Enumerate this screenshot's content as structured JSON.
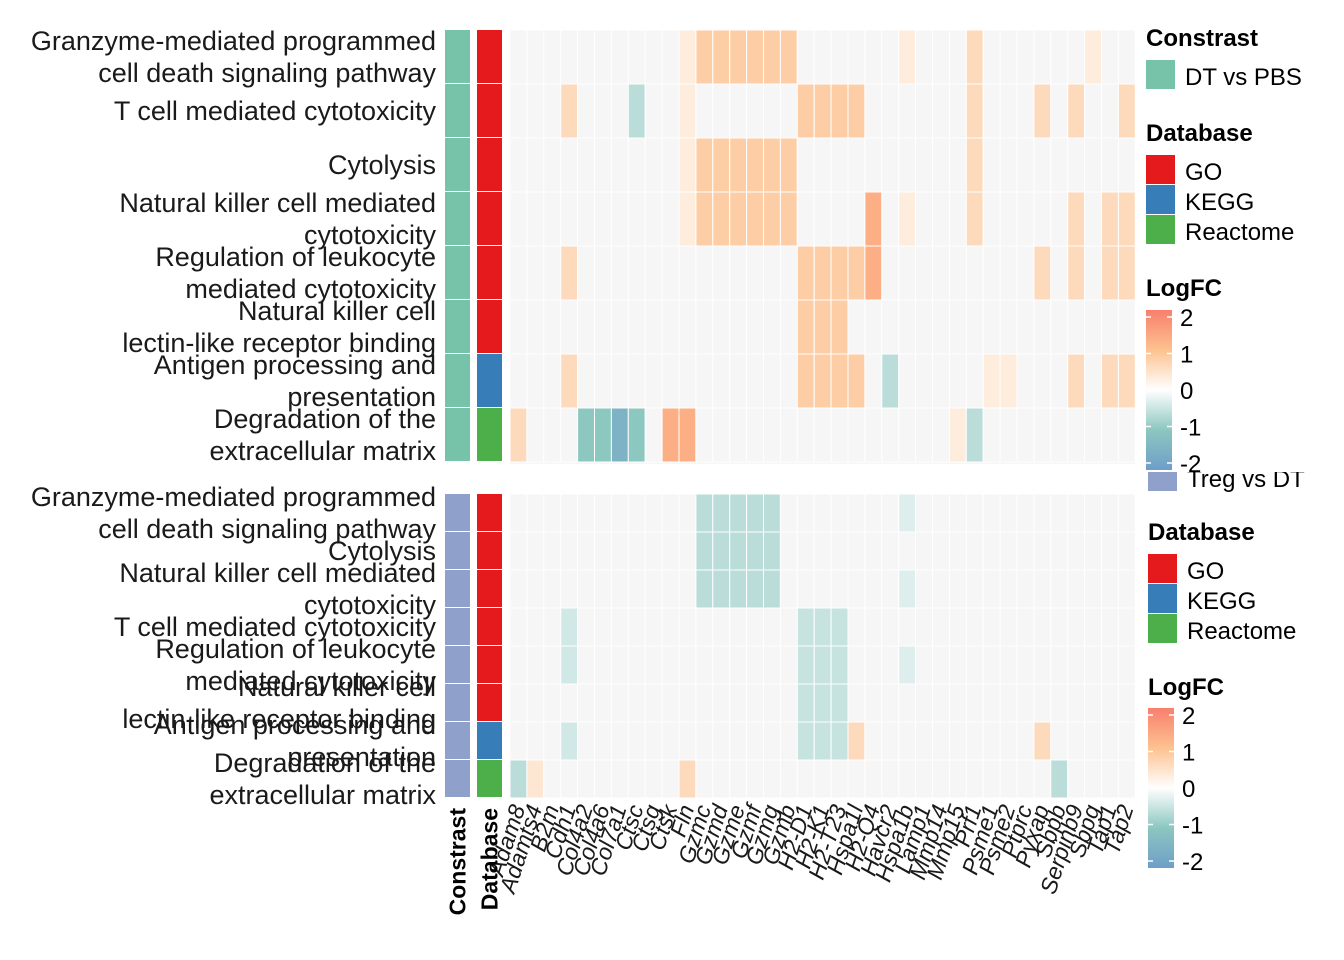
{
  "chart_data": {
    "type": "heatmap",
    "genes": [
      "Adam8",
      "Adamts4",
      "B2m",
      "Cdh1",
      "Col4a2",
      "Col4a6",
      "Col7a1",
      "Ctsc",
      "Ctsg",
      "Ctsk",
      "Fln",
      "Gzmc",
      "Gzmd",
      "Gzme",
      "Gzmf",
      "Gzmg",
      "Gzmb",
      "H2-D1",
      "H2-K1",
      "H2-T23",
      "Hspa1l",
      "H2-Q4",
      "Havcr2",
      "Hspa1b",
      "Lamp1",
      "Mmp14",
      "Mmp15",
      "Prf1",
      "Psme1",
      "Psme2",
      "Ptprc",
      "Pyxap",
      "Sbpb",
      "Serpinb9",
      "Sbpg",
      "Tap1",
      "Tap2"
    ],
    "x_axis_titles": [
      "Constrast",
      "Database"
    ],
    "logfc_scale": {
      "min": -2,
      "max": 2,
      "ticks": [
        "2",
        "1",
        "0",
        "-1",
        "-2"
      ]
    },
    "panels": [
      {
        "constrast": "DT vs PBS",
        "rows": [
          {
            "label": [
              "Granzyme-mediated programmed",
              "cell death signaling pathway"
            ],
            "database": "GO",
            "values": [
              0,
              0,
              0,
              0,
              0,
              0,
              0,
              0,
              0,
              0,
              0.3,
              0.8,
              0.8,
              0.8,
              0.8,
              0.8,
              0.8,
              0,
              0,
              0,
              0,
              0,
              0,
              0.3,
              0,
              0,
              0,
              0.6,
              0,
              0,
              0,
              0,
              0,
              0,
              0.3,
              0,
              0
            ]
          },
          {
            "label": [
              "T cell mediated cytotoxicity"
            ],
            "database": "GO",
            "values": [
              0,
              0,
              0,
              0.6,
              0,
              0,
              0,
              -0.6,
              0,
              0,
              0.3,
              0,
              0,
              0,
              0,
              0,
              0,
              0.8,
              0.8,
              0.8,
              0.8,
              0,
              0,
              0,
              0,
              0,
              0,
              0.6,
              0,
              0,
              0,
              0.6,
              0,
              0.6,
              0,
              0,
              0.6
            ]
          },
          {
            "label": [
              "Cytolysis"
            ],
            "database": "GO",
            "values": [
              0,
              0,
              0,
              0,
              0,
              0,
              0,
              0,
              0,
              0,
              0.3,
              0.8,
              0.8,
              0.8,
              0.8,
              0.8,
              0.8,
              0,
              0,
              0,
              0,
              0,
              0,
              0,
              0,
              0,
              0,
              0.6,
              0,
              0,
              0,
              0,
              0,
              0,
              0,
              0,
              0
            ]
          },
          {
            "label": [
              "Natural killer cell mediated",
              "cytotoxicity"
            ],
            "database": "GO",
            "values": [
              0,
              0,
              0,
              0,
              0,
              0,
              0,
              0,
              0,
              0,
              0.3,
              0.8,
              0.8,
              0.8,
              0.8,
              0.8,
              0.8,
              0,
              0,
              0,
              0,
              1.3,
              0,
              0.3,
              0,
              0,
              0,
              0.6,
              0,
              0,
              0,
              0,
              0,
              0.6,
              0,
              0.6,
              0.6
            ]
          },
          {
            "label": [
              "Regulation of leukocyte",
              "mediated cytotoxicity"
            ],
            "database": "GO",
            "values": [
              0,
              0,
              0,
              0.6,
              0,
              0,
              0,
              0,
              0,
              0,
              0,
              0,
              0,
              0,
              0,
              0,
              0,
              0.8,
              0.8,
              0.8,
              0.8,
              1.3,
              0,
              0,
              0,
              0,
              0,
              0,
              0,
              0,
              0,
              0.6,
              0,
              0.6,
              0,
              0.6,
              0.6
            ]
          },
          {
            "label": [
              "Natural killer cell",
              "lectin-like receptor binding"
            ],
            "database": "GO",
            "values": [
              0,
              0,
              0,
              0,
              0,
              0,
              0,
              0,
              0,
              0,
              0,
              0,
              0,
              0,
              0,
              0,
              0,
              0.8,
              0.8,
              0.8,
              0,
              0,
              0,
              0,
              0,
              0,
              0,
              0,
              0,
              0,
              0,
              0,
              0,
              0,
              0,
              0,
              0
            ]
          },
          {
            "label": [
              "Antigen processing and",
              "presentation"
            ],
            "database": "KEGG",
            "values": [
              0,
              0,
              0,
              0.6,
              0,
              0,
              0,
              0,
              0,
              0,
              0,
              0,
              0,
              0,
              0,
              0,
              0,
              0.8,
              0.8,
              0.8,
              0.8,
              0,
              -0.6,
              0,
              0,
              0,
              0,
              0,
              0.3,
              0.3,
              0,
              0,
              0,
              0.6,
              0,
              0.6,
              0.6
            ]
          },
          {
            "label": [
              "Degradation of the",
              "extracellular matrix"
            ],
            "database": "Reactome",
            "values": [
              0.6,
              0,
              0,
              0,
              -1,
              -1,
              -1.5,
              -1,
              0,
              1.3,
              1.3,
              0,
              0,
              0,
              0,
              0,
              0,
              0,
              0,
              0,
              0,
              0,
              0,
              0,
              0,
              0,
              0.3,
              -0.6,
              0,
              0,
              0,
              0,
              0,
              0,
              0,
              0,
              0
            ]
          }
        ]
      },
      {
        "constrast": "Treg vs DT",
        "rows": [
          {
            "label": [
              "Granzyme-mediated programmed",
              "cell death signaling pathway"
            ],
            "database": "GO",
            "values": [
              0,
              0,
              0,
              0,
              0,
              0,
              0,
              0,
              0,
              0,
              0,
              -0.6,
              -0.6,
              -0.6,
              -0.6,
              -0.6,
              0,
              0,
              0,
              0,
              0,
              0,
              0,
              -0.3,
              0,
              0,
              0,
              0,
              0,
              0,
              0,
              0,
              0,
              0,
              0,
              0,
              0
            ]
          },
          {
            "label": [
              "Cytolysis"
            ],
            "database": "GO",
            "values": [
              0,
              0,
              0,
              0,
              0,
              0,
              0,
              0,
              0,
              0,
              0,
              -0.6,
              -0.6,
              -0.6,
              -0.6,
              -0.6,
              0,
              0,
              0,
              0,
              0,
              0,
              0,
              0,
              0,
              0,
              0,
              0,
              0,
              0,
              0,
              0,
              0,
              0,
              0,
              0,
              0
            ]
          },
          {
            "label": [
              "Natural killer cell mediated",
              "cytotoxicity"
            ],
            "database": "GO",
            "values": [
              0,
              0,
              0,
              0,
              0,
              0,
              0,
              0,
              0,
              0,
              0,
              -0.6,
              -0.6,
              -0.6,
              -0.6,
              -0.6,
              0,
              0,
              0,
              0,
              0,
              0,
              0,
              -0.3,
              0,
              0,
              0,
              0,
              0,
              0,
              0,
              0,
              0,
              0,
              0,
              0,
              0
            ]
          },
          {
            "label": [
              "T cell mediated cytotoxicity"
            ],
            "database": "GO",
            "values": [
              0,
              0,
              0,
              -0.4,
              0,
              0,
              0,
              0,
              0,
              0,
              0,
              0,
              0,
              0,
              0,
              0,
              0,
              -0.5,
              -0.5,
              -0.5,
              0,
              0,
              0,
              0,
              0,
              0,
              0,
              0,
              0,
              0,
              0,
              0,
              0,
              0,
              0,
              0,
              0
            ]
          },
          {
            "label": [
              "Regulation of leukocyte",
              "mediated cytotoxicity"
            ],
            "database": "GO",
            "values": [
              0,
              0,
              0,
              -0.4,
              0,
              0,
              0,
              0,
              0,
              0,
              0,
              0,
              0,
              0,
              0,
              0,
              0,
              -0.5,
              -0.5,
              -0.5,
              0,
              0,
              0,
              -0.3,
              0,
              0,
              0,
              0,
              0,
              0,
              0,
              0,
              0,
              0,
              0,
              0,
              0
            ]
          },
          {
            "label": [
              "Natural killer cell",
              "lectin-like receptor binding"
            ],
            "database": "GO",
            "values": [
              0,
              0,
              0,
              0,
              0,
              0,
              0,
              0,
              0,
              0,
              0,
              0,
              0,
              0,
              0,
              0,
              0,
              -0.5,
              -0.5,
              -0.5,
              0,
              0,
              0,
              0,
              0,
              0,
              0,
              0,
              0,
              0,
              0,
              0,
              0,
              0,
              0,
              0,
              0
            ]
          },
          {
            "label": [
              "Antigen processing and",
              "presentation"
            ],
            "database": "KEGG",
            "values": [
              0,
              0,
              0,
              -0.4,
              0,
              0,
              0,
              0,
              0,
              0,
              0,
              0,
              0,
              0,
              0,
              0,
              0,
              -0.5,
              -0.5,
              -0.5,
              0.6,
              0,
              0,
              0,
              0,
              0,
              0,
              0,
              0,
              0,
              0,
              0.6,
              0,
              0,
              0,
              0,
              0
            ]
          },
          {
            "label": [
              "Degradation of the",
              "extracellular matrix"
            ],
            "database": "Reactome",
            "values": [
              -0.6,
              0.4,
              0,
              0,
              0,
              0,
              0,
              0,
              0,
              0,
              0.6,
              0,
              0,
              0,
              0,
              0,
              0,
              0,
              0,
              0,
              0,
              0,
              0,
              0,
              0,
              0,
              0,
              0,
              0,
              0,
              0,
              0,
              -0.6,
              0,
              0,
              0,
              0
            ]
          }
        ]
      }
    ],
    "legends": [
      {
        "constrast_title": "Constrast",
        "constrast_entries": [
          {
            "label": "DT vs PBS",
            "color": "#76c3a9"
          }
        ],
        "database_title": "Database",
        "database_entries": [
          {
            "label": "GO",
            "color": "#e41a1c"
          },
          {
            "label": "KEGG",
            "color": "#377eb8"
          },
          {
            "label": "Reactome",
            "color": "#4daf4a"
          }
        ],
        "logfc_title": "LogFC"
      },
      {
        "constrast_entries": [
          {
            "label": "Treg vs DT",
            "color": "#8fa1cb"
          }
        ],
        "database_title": "Database",
        "database_entries": [
          {
            "label": "GO",
            "color": "#e41a1c"
          },
          {
            "label": "KEGG",
            "color": "#377eb8"
          },
          {
            "label": "Reactome",
            "color": "#4daf4a"
          }
        ],
        "logfc_title": "LogFC"
      }
    ],
    "colors": {
      "constrast": {
        "DT vs PBS": "#76c3a9",
        "Treg vs DT": "#8fa1cb"
      },
      "database": {
        "GO": "#e41a1c",
        "KEGG": "#377eb8",
        "Reactome": "#4daf4a"
      },
      "logfc_stops": [
        "#6e9ec9",
        "#8cc7c0",
        "#ffffff",
        "#fdc28f",
        "#f87f6e"
      ],
      "panel_bg": "#f6f6f6"
    }
  }
}
